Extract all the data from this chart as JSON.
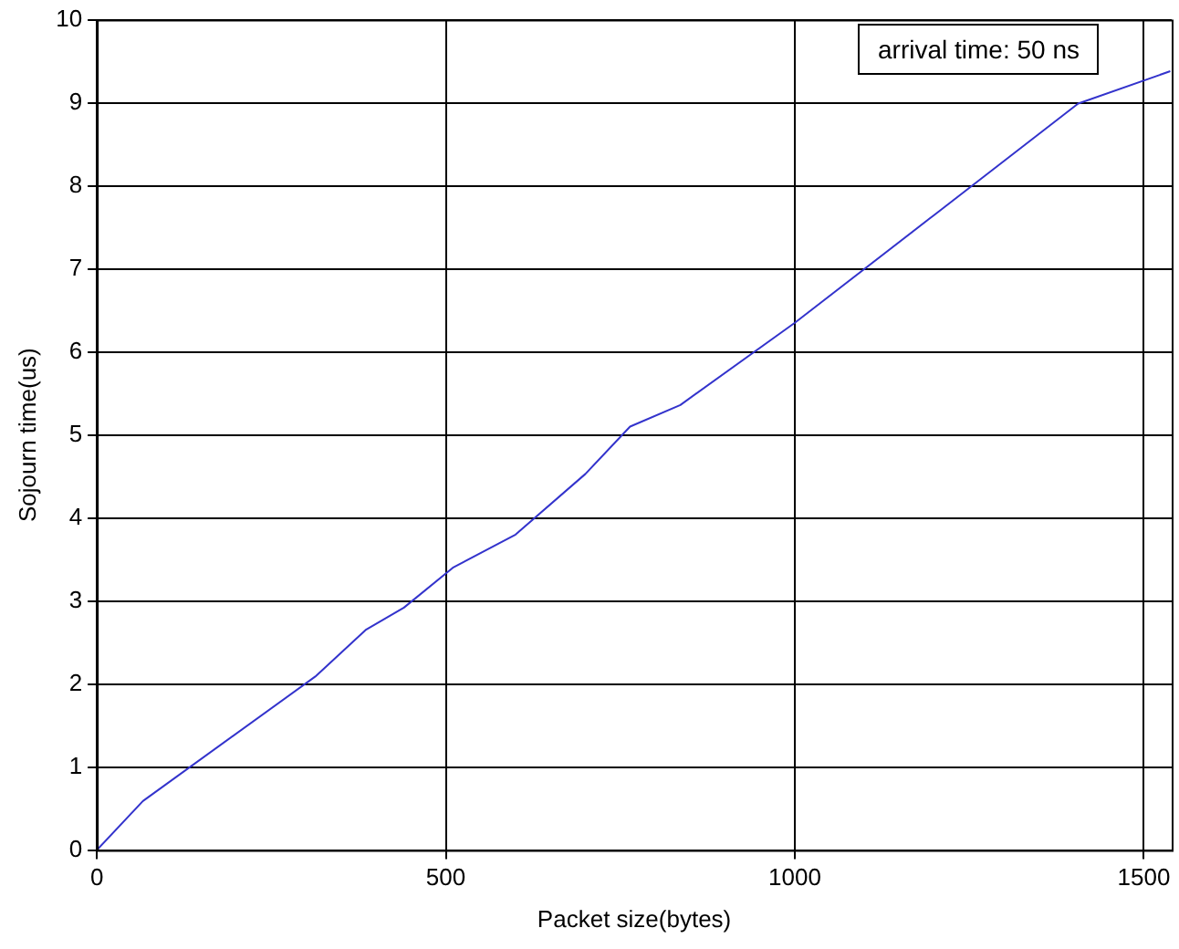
{
  "chart_data": {
    "type": "line",
    "xlabel": "Packet size(bytes)",
    "ylabel": "Sojourn time(us)",
    "annotations": [
      "arrival time: 50 ns"
    ],
    "x": [
      0,
      66,
      313,
      385,
      440,
      510,
      600,
      700,
      764,
      836,
      1000,
      1200,
      1406,
      1538
    ],
    "series": [
      {
        "color": "#3333cc",
        "values": [
          0,
          0.59,
          2.09,
          2.65,
          2.92,
          3.4,
          3.8,
          4.53,
          5.1,
          5.36,
          6.35,
          7.65,
          8.99,
          9.38
        ]
      }
    ],
    "xlim": [
      0,
      1540
    ],
    "xticks": [
      0,
      500,
      1000,
      1500
    ],
    "ylim": [
      0,
      10
    ],
    "yticks": [
      0,
      1,
      2,
      3,
      4,
      5,
      6,
      7,
      8,
      9,
      10
    ],
    "grid": true,
    "legend": false,
    "marker": "none",
    "line_style": "solid"
  }
}
